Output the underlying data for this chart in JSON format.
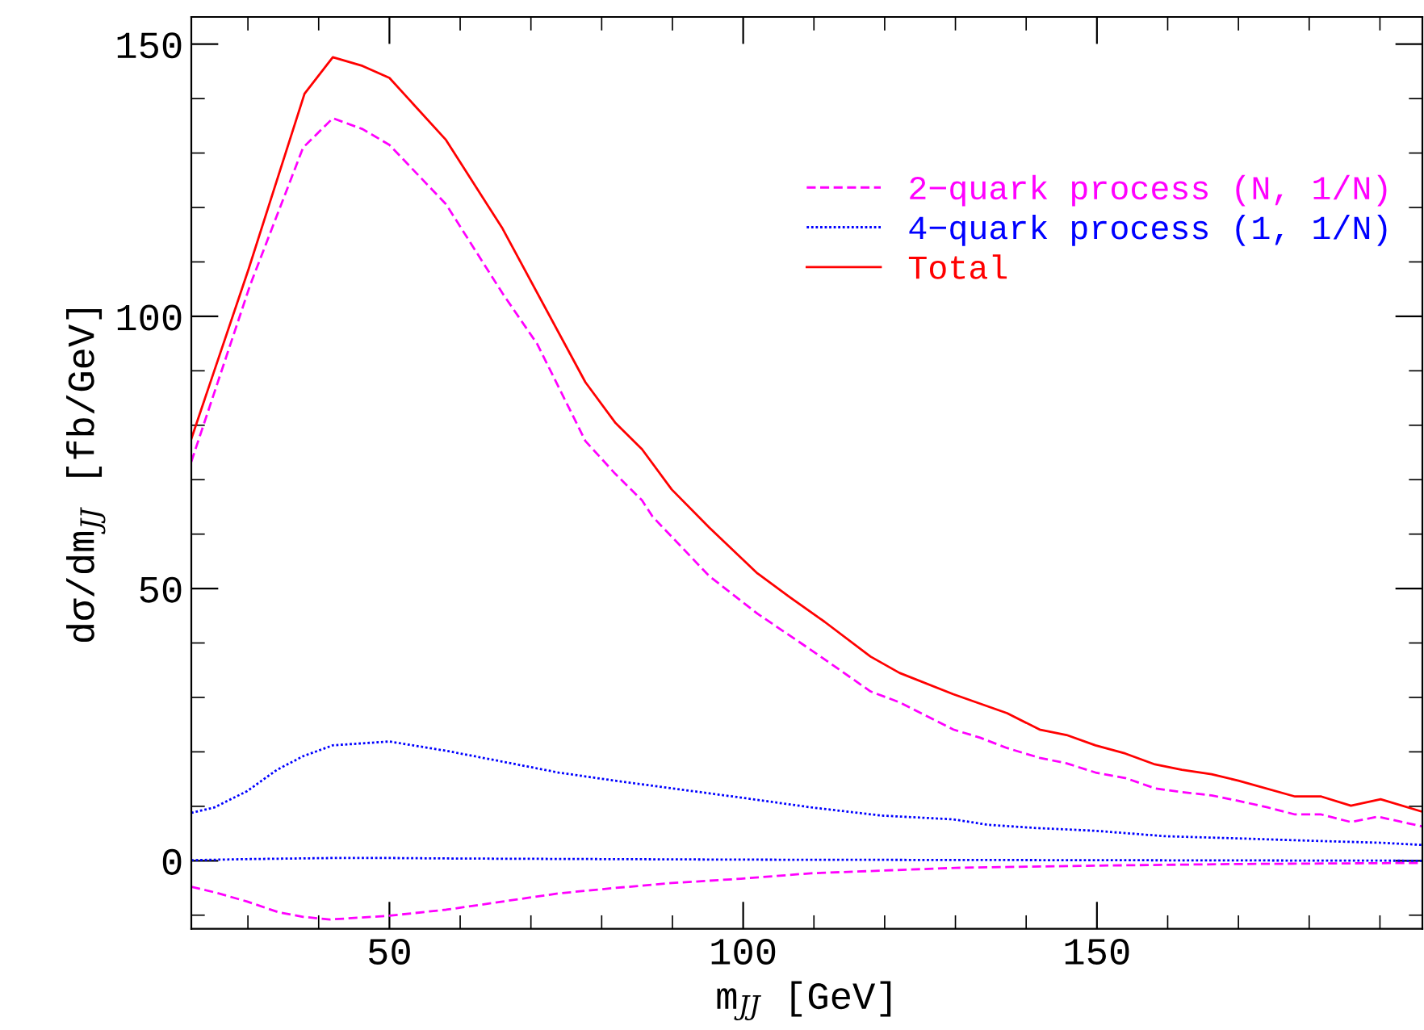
{
  "chart_data": {
    "type": "line",
    "xlabel": "m$_{JJ}$ [GeV]",
    "ylabel": "dσ/dm$_{JJ}$ [fb/GeV]",
    "xlim": [
      22,
      196
    ],
    "ylim": [
      -12.5,
      155
    ],
    "xticks": [
      {
        "value": 30,
        "label": null
      },
      {
        "value": 40,
        "label": null
      },
      50,
      {
        "value": 60,
        "label": null
      },
      {
        "value": 70,
        "label": null
      },
      {
        "value": 80,
        "label": null
      },
      {
        "value": 90,
        "label": null
      },
      100,
      {
        "value": 110,
        "label": null
      },
      {
        "value": 120,
        "label": null
      },
      {
        "value": 130,
        "label": null
      },
      {
        "value": 140,
        "label": null
      },
      150,
      {
        "value": 160,
        "label": null
      },
      {
        "value": 170,
        "label": null
      },
      {
        "value": 180,
        "label": null
      },
      {
        "value": 190,
        "label": null
      }
    ],
    "yticks": [
      {
        "value": -10,
        "label": null
      },
      0,
      {
        "value": 10,
        "label": null
      },
      {
        "value": 20,
        "label": null
      },
      {
        "value": 30,
        "label": null
      },
      {
        "value": 40,
        "label": null
      },
      50,
      {
        "value": 60,
        "label": null
      },
      {
        "value": 70,
        "label": null
      },
      {
        "value": 80,
        "label": null
      },
      {
        "value": 90,
        "label": null
      },
      100,
      {
        "value": 110,
        "label": null
      },
      {
        "value": 120,
        "label": null
      },
      {
        "value": 130,
        "label": null
      },
      {
        "value": 140,
        "label": null
      },
      150
    ],
    "grid": false,
    "legend": "top right",
    "marker": "none",
    "series": [
      {
        "name": "2−quark process (N, 1/N)",
        "color": "#ff00ff",
        "line_style": "dashed",
        "x": [
          22,
          30.3,
          37.8,
          42,
          46.2,
          50,
          58,
          66,
          70.9,
          77.7,
          81.9,
          85.7,
          87.2,
          95.2,
          102,
          110.4,
          118,
          122.1,
          129.7,
          133.5,
          137.3,
          141.9,
          145.7,
          149.8,
          154,
          158.2,
          162,
          166.2,
          170,
          174.1,
          178,
          181.7,
          185.9,
          189.7,
          196
        ],
        "values": [
          73.3,
          105.7,
          131,
          136.4,
          134.4,
          131.5,
          120.6,
          104.2,
          94.9,
          77.1,
          71.1,
          66.2,
          63.2,
          52.3,
          45.4,
          38,
          31.1,
          29.1,
          24.1,
          22.6,
          20.7,
          18.9,
          17.9,
          16.2,
          15.2,
          13.3,
          12.6,
          12,
          11,
          9.8,
          8.5,
          8.5,
          7.1,
          8.1,
          6.3
        ]
      },
      {
        "color": "#ff00ff",
        "line_style": "dashed",
        "x": [
          22,
          25.3,
          29.9,
          34.4,
          37.8,
          41.6,
          50,
          58,
          66,
          73.9,
          81.9,
          89.9,
          99.7,
          109.6,
          130.1,
          149.8,
          170,
          196
        ],
        "values": [
          -4.8,
          -5.8,
          -7.5,
          -9.5,
          -10.3,
          -10.8,
          -10.1,
          -9,
          -7.5,
          -6,
          -5,
          -4.1,
          -3.3,
          -2.3,
          -1.3,
          -0.9,
          -0.6,
          -0.4
        ]
      },
      {
        "name": "4−quark process (1, 1/N)",
        "color": "#0000ff",
        "line_style": "dotted",
        "x": [
          22,
          25.3,
          29.9,
          34.1,
          37.8,
          42,
          50,
          58,
          66,
          73.9,
          81.9,
          89.9,
          99.7,
          109.6,
          119.5,
          129.7,
          134.6,
          141.5,
          149.8,
          159.7,
          170,
          179.5,
          190.1,
          196
        ],
        "values": [
          8.8,
          9.8,
          12.8,
          16.7,
          19.2,
          21.2,
          21.9,
          20.2,
          18.2,
          16.2,
          14.7,
          13.3,
          11.6,
          9.8,
          8.3,
          7.6,
          6.6,
          6,
          5.5,
          4.5,
          4.1,
          3.7,
          3.3,
          2.9
        ]
      },
      {
        "color": "#0000ff",
        "line_style": "dotted",
        "x": [
          22,
          30,
          42,
          50,
          60,
          80,
          100,
          150,
          196
        ],
        "values": [
          0.1,
          0.3,
          0.5,
          0.5,
          0.4,
          0.3,
          0.2,
          0.1,
          0
        ]
      },
      {
        "name": "Total",
        "color": "#ff0000",
        "line_style": "solid",
        "x": [
          22,
          30.1,
          38,
          42,
          46.2,
          50,
          58,
          66,
          77.7,
          81.9,
          85.7,
          89.9,
          95.2,
          102,
          106.6,
          111.5,
          118,
          122.1,
          129.7,
          137.3,
          141.9,
          145.7,
          149.8,
          154,
          158.2,
          162,
          166.2,
          170,
          178,
          181.7,
          185.9,
          190.1,
          196
        ],
        "values": [
          77.5,
          108.7,
          140.9,
          147.6,
          146,
          143.8,
          132.4,
          116.1,
          87.9,
          80.5,
          75.6,
          68.2,
          61.2,
          52.8,
          48.4,
          43.9,
          37.5,
          34.5,
          30.6,
          27.1,
          24.1,
          23.1,
          21.2,
          19.7,
          17.7,
          16.7,
          15.9,
          14.7,
          11.8,
          11.8,
          10.1,
          11.3,
          9
        ]
      }
    ]
  }
}
